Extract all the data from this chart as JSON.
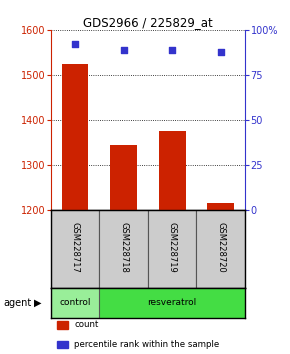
{
  "title": "GDS2966 / 225829_at",
  "samples": [
    "GSM228717",
    "GSM228718",
    "GSM228719",
    "GSM228720"
  ],
  "counts": [
    1525,
    1345,
    1375,
    1215
  ],
  "percentiles": [
    92,
    89,
    89,
    88
  ],
  "ylim_left": [
    1200,
    1600
  ],
  "ylim_right": [
    0,
    100
  ],
  "yticks_left": [
    1200,
    1300,
    1400,
    1500,
    1600
  ],
  "yticks_right": [
    0,
    25,
    50,
    75,
    100
  ],
  "ytick_labels_right": [
    "0",
    "25",
    "50",
    "75",
    "100%"
  ],
  "bar_color": "#cc2200",
  "dot_color": "#3333cc",
  "agent_label": "agent",
  "control_color": "#99ee99",
  "resveratrol_color": "#44dd44",
  "legend_items": [
    {
      "label": "count",
      "color": "#cc2200"
    },
    {
      "label": "percentile rank within the sample",
      "color": "#3333cc"
    }
  ],
  "background_color": "#ffffff",
  "label_area_color": "#cccccc"
}
